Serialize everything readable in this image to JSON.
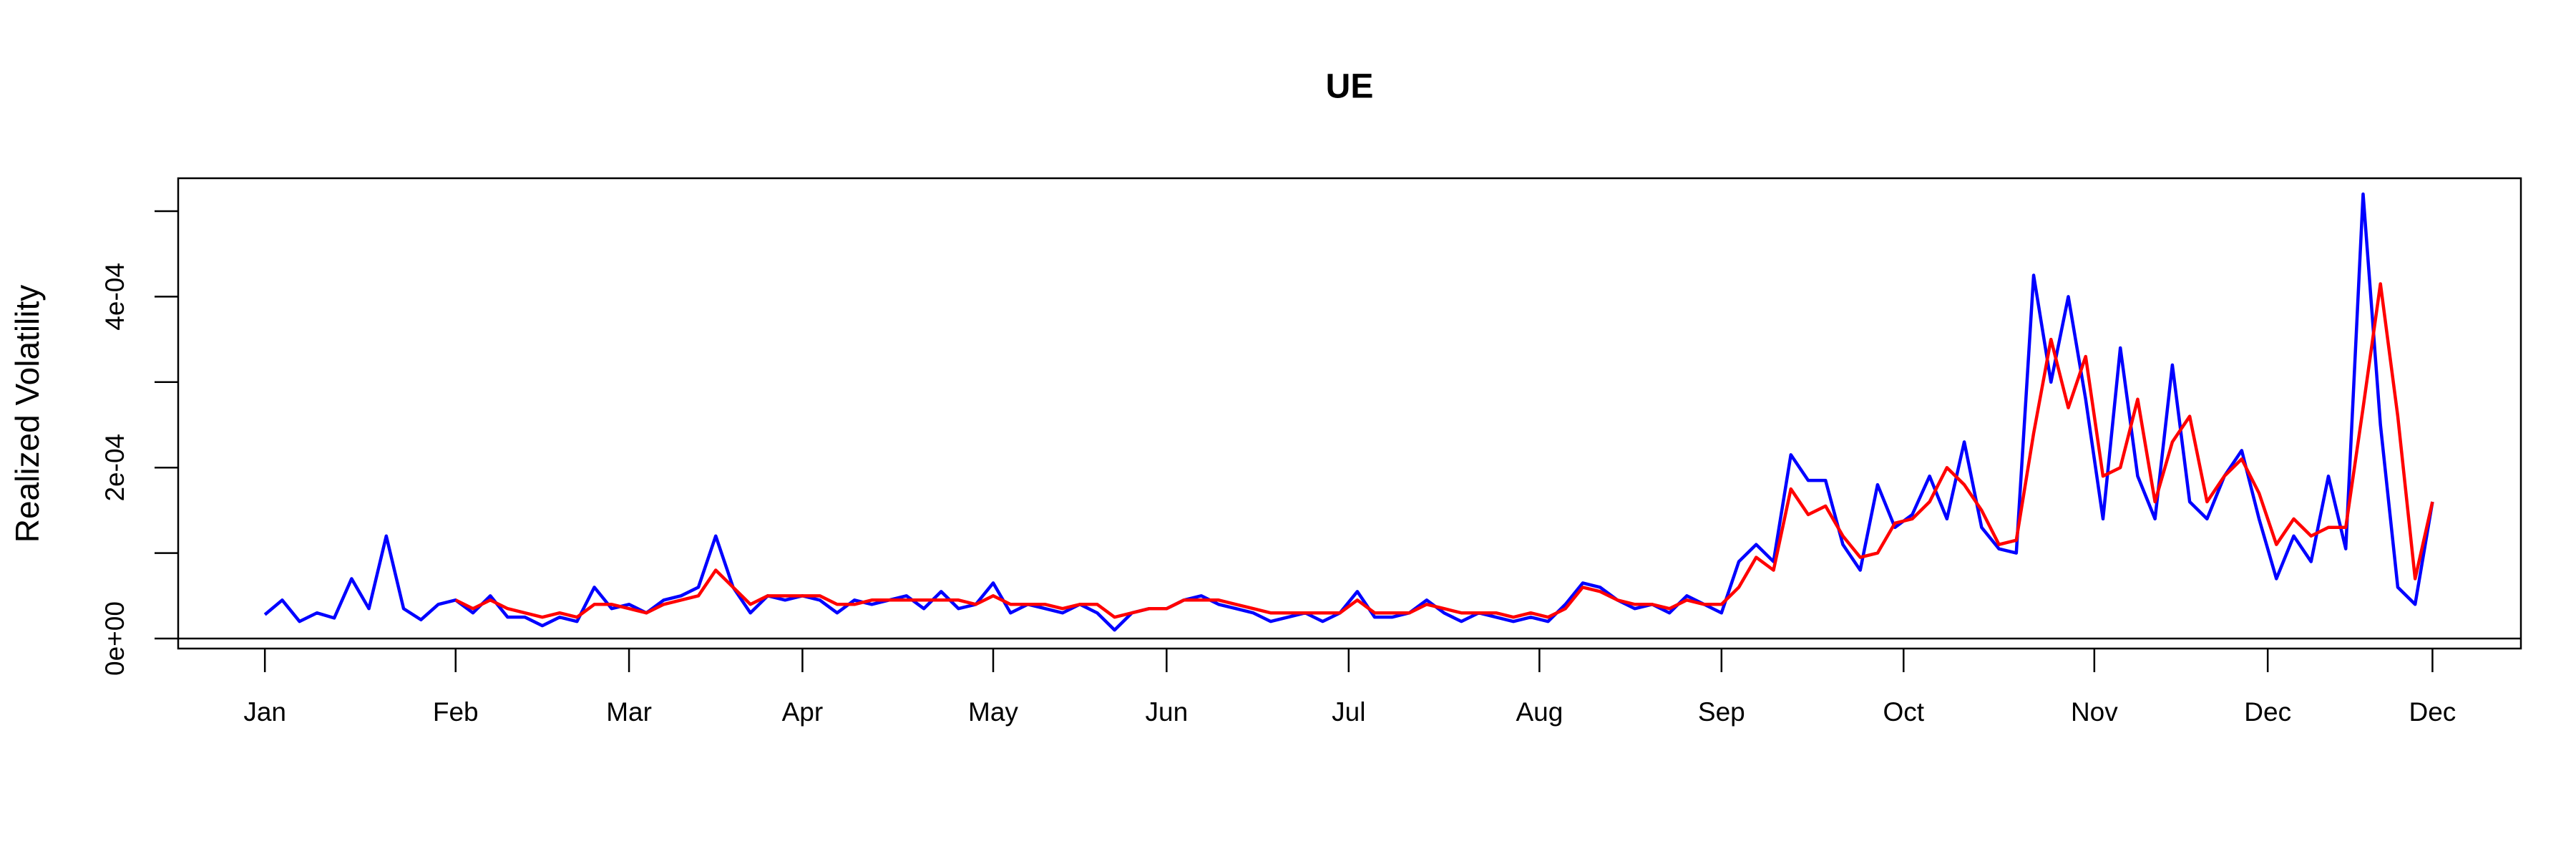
{
  "chart_data": {
    "type": "line",
    "title": "UE",
    "ylabel": "Realized Volatility",
    "x": [
      0,
      2,
      4,
      6,
      8,
      10,
      12,
      14,
      16,
      18,
      20,
      22,
      24,
      26,
      28,
      30,
      32,
      34,
      36,
      38,
      40,
      42,
      44,
      46,
      48,
      50,
      52,
      54,
      56,
      58,
      60,
      62,
      64,
      66,
      68,
      70,
      72,
      74,
      76,
      78,
      80,
      82,
      84,
      86,
      88,
      90,
      92,
      94,
      96,
      98,
      100,
      102,
      104,
      106,
      108,
      110,
      112,
      114,
      116,
      118,
      120,
      122,
      124,
      126,
      128,
      130,
      132,
      134,
      136,
      138,
      140,
      142,
      144,
      146,
      148,
      150,
      152,
      154,
      156,
      158,
      160,
      162,
      164,
      166,
      168,
      170,
      172,
      174,
      176,
      178,
      180,
      182,
      184,
      186,
      188,
      190,
      192,
      194,
      196,
      198,
      200,
      202,
      204,
      206,
      208,
      210,
      212,
      214,
      216,
      218,
      220,
      222,
      224,
      226,
      228,
      230,
      232,
      234,
      236,
      238,
      240,
      242,
      244,
      246,
      248,
      250
    ],
    "series": [
      {
        "color": "#0000ff",
        "values": [
          2.8e-05,
          4.5e-05,
          2e-05,
          3e-05,
          2.4e-05,
          7e-05,
          3.5e-05,
          0.00012,
          3.5e-05,
          2.2e-05,
          4e-05,
          4.5e-05,
          3e-05,
          5e-05,
          2.5e-05,
          2.5e-05,
          1.5e-05,
          2.5e-05,
          2e-05,
          6e-05,
          3.5e-05,
          4e-05,
          3e-05,
          4.5e-05,
          5e-05,
          6e-05,
          0.00012,
          6e-05,
          3e-05,
          5e-05,
          4.5e-05,
          5e-05,
          4.5e-05,
          3e-05,
          4.5e-05,
          4e-05,
          4.5e-05,
          5e-05,
          3.5e-05,
          5.5e-05,
          3.5e-05,
          4e-05,
          6.5e-05,
          3e-05,
          4e-05,
          3.5e-05,
          3e-05,
          4e-05,
          3e-05,
          1e-05,
          3e-05,
          3.5e-05,
          3.5e-05,
          4.5e-05,
          5e-05,
          4e-05,
          3.5e-05,
          3e-05,
          2e-05,
          2.5e-05,
          3e-05,
          2e-05,
          3e-05,
          5.5e-05,
          2.5e-05,
          2.5e-05,
          3e-05,
          4.5e-05,
          3e-05,
          2e-05,
          3e-05,
          2.5e-05,
          2e-05,
          2.5e-05,
          2e-05,
          4e-05,
          6.5e-05,
          6e-05,
          4.5e-05,
          3.5e-05,
          4e-05,
          3e-05,
          5e-05,
          4e-05,
          3e-05,
          9e-05,
          0.00011,
          9e-05,
          0.000215,
          0.000185,
          0.000185,
          0.00011,
          8e-05,
          0.00018,
          0.00013,
          0.000145,
          0.00019,
          0.00014,
          0.00023,
          0.00013,
          0.000105,
          0.0001,
          0.000425,
          0.0003,
          0.0004,
          0.00028,
          0.00014,
          0.00034,
          0.00019,
          0.00014,
          0.00032,
          0.00016,
          0.00014,
          0.00019,
          0.00022,
          0.00014,
          7e-05,
          0.00012,
          9e-05,
          0.00019,
          0.000105,
          0.00052,
          0.00025,
          6e-05,
          4e-05,
          0.00016
        ]
      },
      {
        "color": "#ff0000",
        "values": [
          null,
          null,
          null,
          null,
          null,
          null,
          null,
          null,
          null,
          null,
          null,
          4.5e-05,
          3.5e-05,
          4.5e-05,
          3.5e-05,
          3e-05,
          2.5e-05,
          3e-05,
          2.5e-05,
          4e-05,
          4e-05,
          3.5e-05,
          3e-05,
          4e-05,
          4.5e-05,
          5e-05,
          8e-05,
          6e-05,
          4e-05,
          5e-05,
          5e-05,
          5e-05,
          5e-05,
          4e-05,
          4e-05,
          4.5e-05,
          4.5e-05,
          4.5e-05,
          4.5e-05,
          4.5e-05,
          4.5e-05,
          4e-05,
          5e-05,
          4e-05,
          4e-05,
          4e-05,
          3.5e-05,
          4e-05,
          4e-05,
          2.5e-05,
          3e-05,
          3.5e-05,
          3.5e-05,
          4.5e-05,
          4.5e-05,
          4.5e-05,
          4e-05,
          3.5e-05,
          3e-05,
          3e-05,
          3e-05,
          3e-05,
          3e-05,
          4.5e-05,
          3e-05,
          3e-05,
          3e-05,
          4e-05,
          3.5e-05,
          3e-05,
          3e-05,
          3e-05,
          2.5e-05,
          3e-05,
          2.5e-05,
          3.5e-05,
          6e-05,
          5.5e-05,
          4.5e-05,
          4e-05,
          4e-05,
          3.5e-05,
          4.5e-05,
          4e-05,
          4e-05,
          6e-05,
          9.5e-05,
          8e-05,
          0.000175,
          0.000145,
          0.000155,
          0.00012,
          9.5e-05,
          0.0001,
          0.000135,
          0.00014,
          0.00016,
          0.0002,
          0.00018,
          0.00015,
          0.00011,
          0.000115,
          0.00024,
          0.00035,
          0.00027,
          0.00033,
          0.00019,
          0.0002,
          0.00028,
          0.00016,
          0.00023,
          0.00026,
          0.00016,
          0.00019,
          0.00021,
          0.00017,
          0.00011,
          0.00014,
          0.00012,
          0.00013,
          0.00013,
          0.00027,
          0.000415,
          0.00026,
          7e-05,
          0.00016
        ]
      }
    ],
    "xlim": [
      -10,
      260.2
    ],
    "xticks": [
      {
        "value": 0,
        "label": "Jan"
      },
      {
        "value": 22,
        "label": "Feb"
      },
      {
        "value": 42,
        "label": "Mar"
      },
      {
        "value": 62,
        "label": "Apr"
      },
      {
        "value": 84,
        "label": "May"
      },
      {
        "value": 104,
        "label": "Jun"
      },
      {
        "value": 125,
        "label": "Jul"
      },
      {
        "value": 147,
        "label": "Aug"
      },
      {
        "value": 168,
        "label": "Sep"
      },
      {
        "value": 189,
        "label": "Oct"
      },
      {
        "value": 211,
        "label": "Nov"
      },
      {
        "value": 231,
        "label": "Dec"
      },
      {
        "value": 250,
        "label": "Dec"
      }
    ],
    "ylim": [
      -1.17e-05,
      0.0005385
    ],
    "yticks": [
      {
        "value": 0,
        "label": "0e+00"
      },
      {
        "value": 0.0001,
        "label": null
      },
      {
        "value": 0.0002,
        "label": "2e-04"
      },
      {
        "value": 0.0003,
        "label": null
      },
      {
        "value": 0.0004,
        "label": "4e-04"
      },
      {
        "value": 0.0005,
        "label": null
      }
    ],
    "hline": 0
  }
}
